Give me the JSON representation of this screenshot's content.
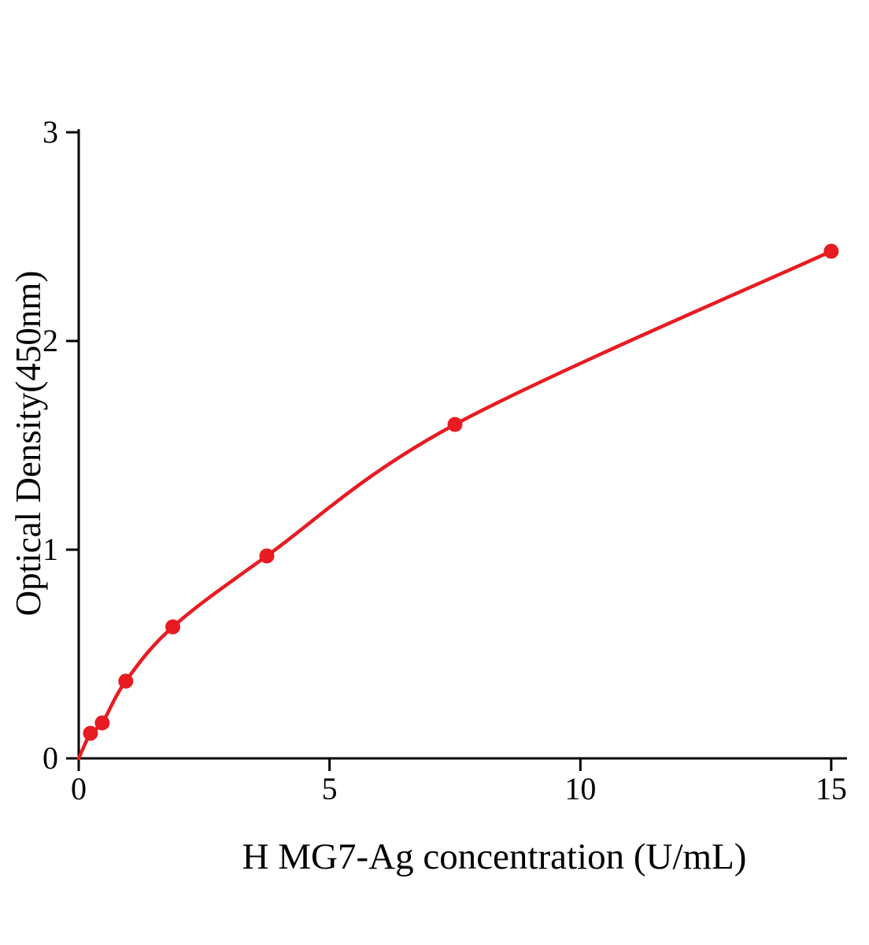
{
  "figure": {
    "background": "#ffffff"
  },
  "chart_data": {
    "type": "scatter",
    "title": "",
    "xlabel": "H MG7-Ag concentration (U/mL)",
    "ylabel": "Optical Density(450nm)",
    "x": [
      0.234,
      0.469,
      0.938,
      1.875,
      3.75,
      7.5,
      15
    ],
    "y": [
      0.12,
      0.17,
      0.37,
      0.63,
      0.97,
      1.6,
      2.43
    ],
    "curve": {
      "style": "smooth-through-points",
      "start_x": 0,
      "start_y": 0
    },
    "xlim": [
      0,
      15
    ],
    "ylim": [
      0,
      3
    ],
    "xticks": [
      0,
      5,
      10,
      15
    ],
    "yticks": [
      0,
      1,
      2,
      3
    ],
    "grid": false,
    "legend": "none",
    "line_color": "#e81b22",
    "point_color": "#e81b22",
    "axis_color": "#000000"
  }
}
